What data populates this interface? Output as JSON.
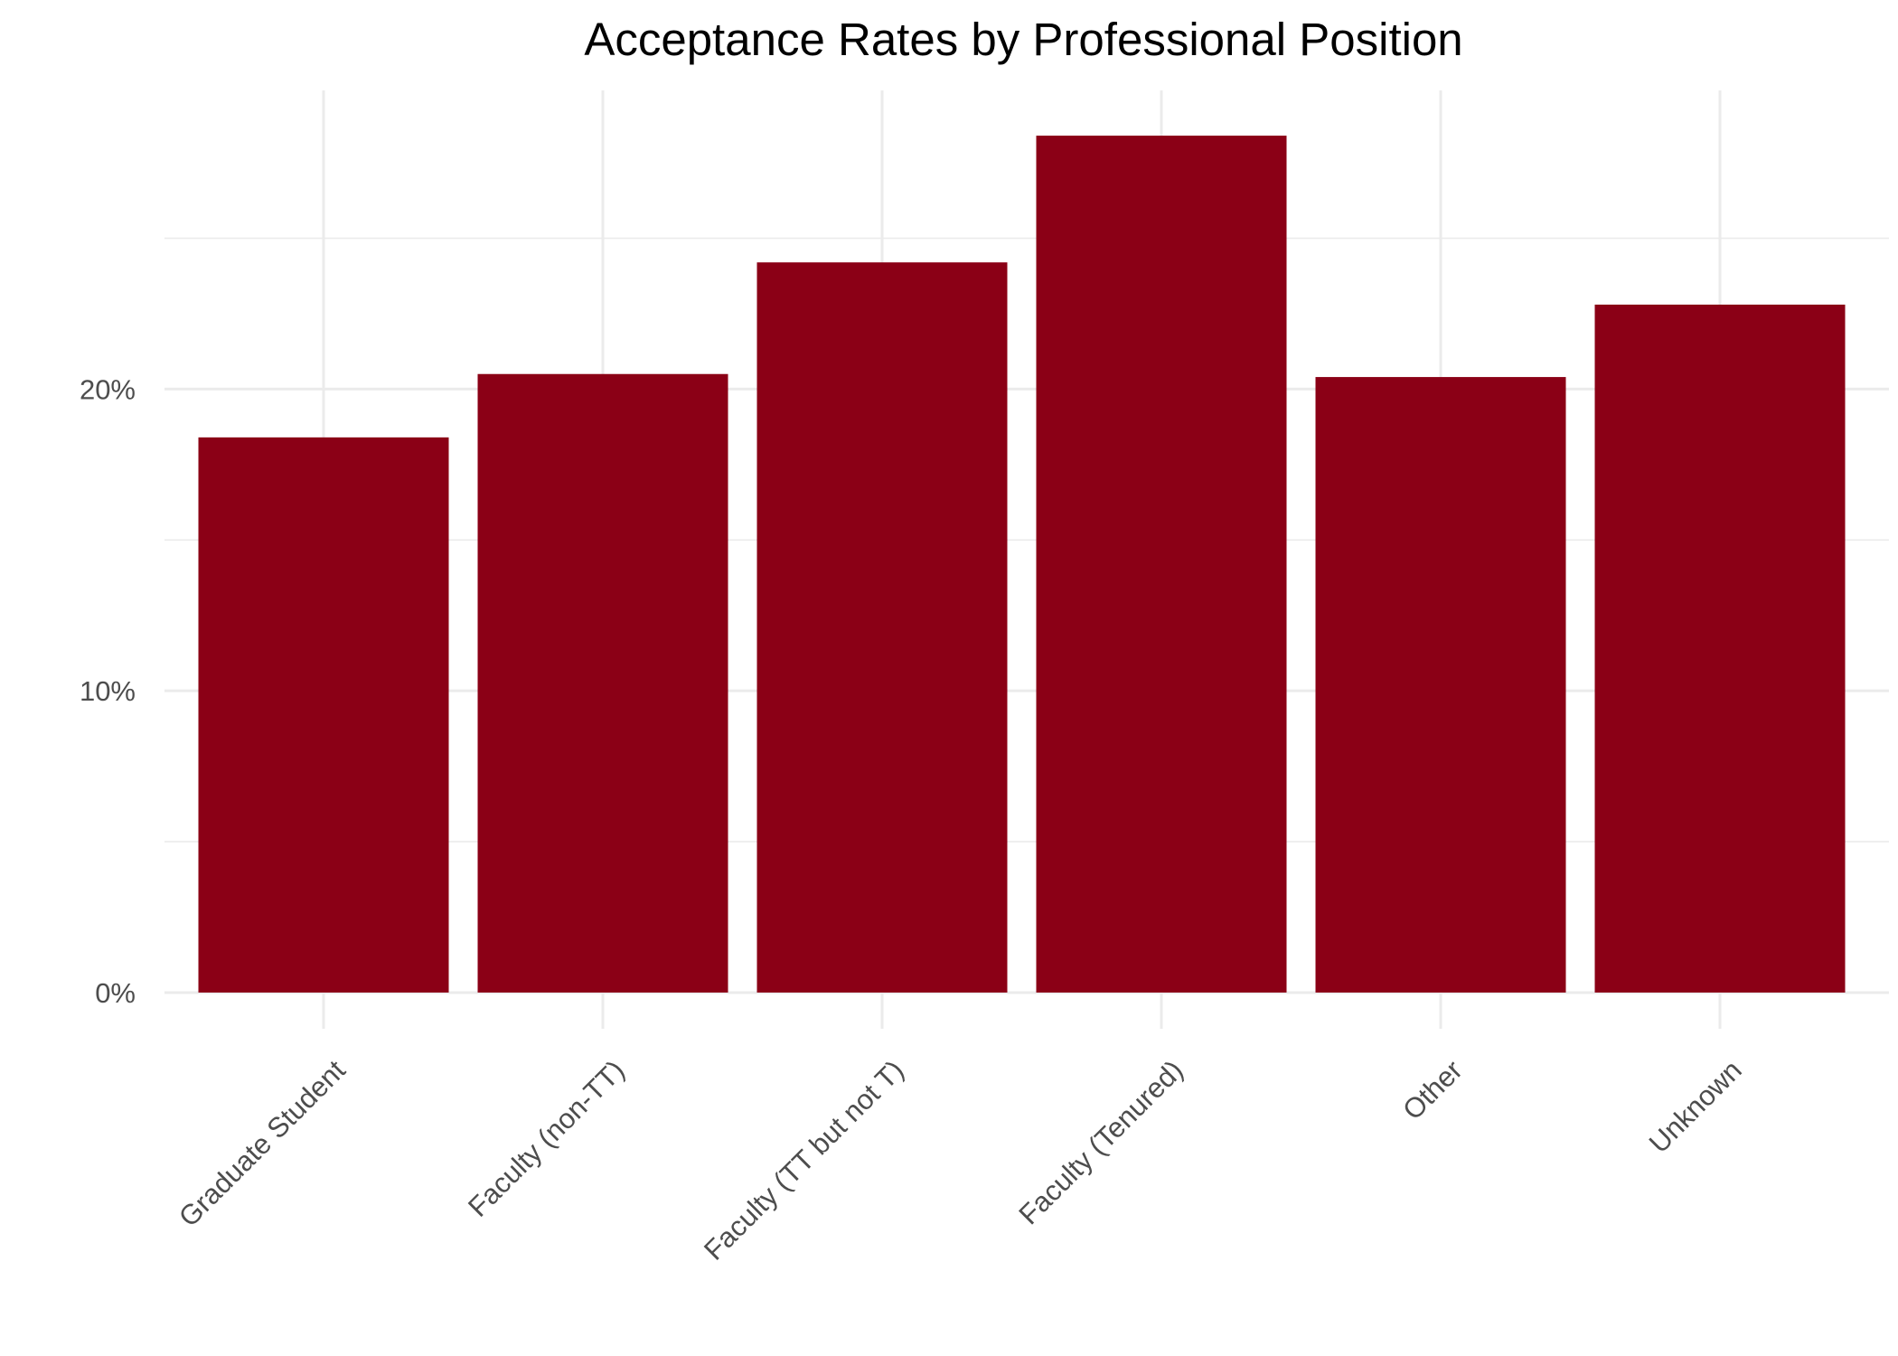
{
  "chart_data": {
    "type": "bar",
    "title": "Acceptance Rates by Professional Position",
    "xlabel": "",
    "ylabel": "",
    "categories": [
      "Graduate Student",
      "Faculty (non-TT)",
      "Faculty (TT but not T)",
      "Faculty (Tenured)",
      "Other",
      "Unknown"
    ],
    "values": [
      18.4,
      20.5,
      24.2,
      28.4,
      20.4,
      22.8
    ],
    "ylim": [
      -1.2,
      29.9
    ],
    "yticks": [
      0,
      10,
      20
    ],
    "ytick_labels": [
      "0%",
      "10%",
      "20%"
    ],
    "grid": true,
    "legend": "none",
    "bar_color": "#8b0016",
    "grid_color": "#ebebeb"
  }
}
